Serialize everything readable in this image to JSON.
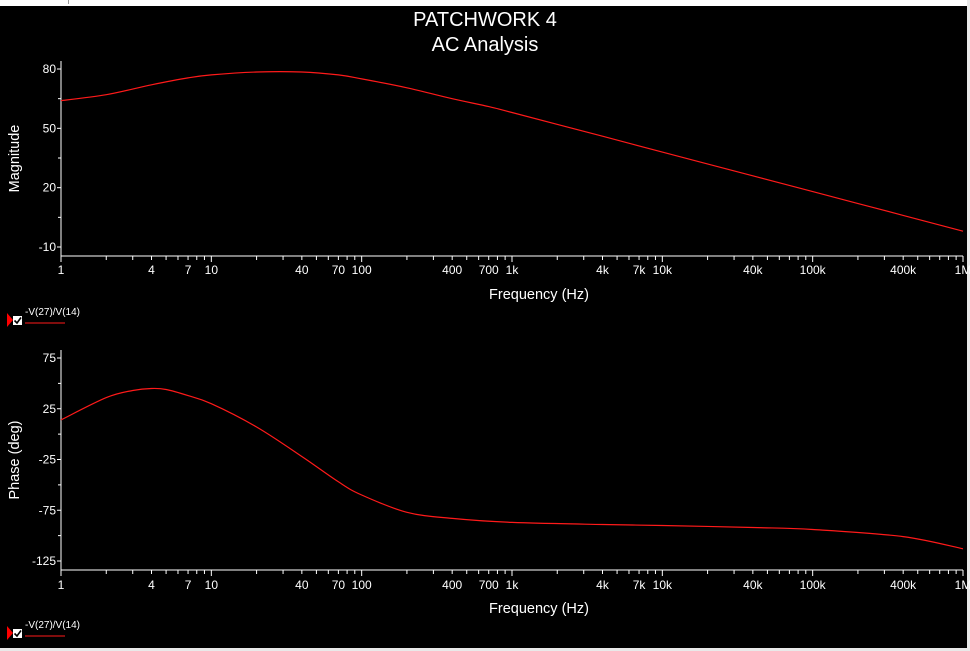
{
  "title": "PATCHWORK 4",
  "subtitle": "AC Analysis",
  "colors": {
    "background": "#000000",
    "trace": "#ff1a1a",
    "axis": "#ffffff",
    "marker": "#ff0000"
  },
  "chart_data": [
    {
      "type": "line",
      "title": "",
      "xlabel": "Frequency (Hz)",
      "ylabel": "Magnitude",
      "x_scale": "log",
      "xlim": [
        1,
        1000000
      ],
      "ylim": [
        -10,
        80
      ],
      "x_ticks": [
        1,
        4,
        7,
        10,
        40,
        70,
        100,
        400,
        700,
        1000,
        4000,
        7000,
        10000,
        40000,
        100000,
        400000,
        1000000
      ],
      "x_tick_labels": [
        "1",
        "4",
        "7",
        "10",
        "40",
        "70",
        "100",
        "400",
        "700",
        "1k",
        "4k",
        "7k",
        "10k",
        "40k",
        "100k",
        "400k",
        "1M"
      ],
      "y_ticks": [
        80,
        50,
        20,
        -10
      ],
      "y_tick_labels": [
        "80",
        "50",
        "20",
        "-10"
      ],
      "legend": {
        "label": "-V(27)/V(14)",
        "checked": true
      },
      "series": [
        {
          "name": "-V(27)/V(14)",
          "color": "#ff1a1a",
          "x": [
            1,
            2,
            4,
            7,
            10,
            20,
            40,
            70,
            100,
            200,
            400,
            700,
            1000,
            4000,
            10000,
            40000,
            100000,
            400000,
            1000000
          ],
          "y": [
            64,
            67,
            72,
            75.5,
            77,
            78.5,
            78.5,
            77,
            75,
            70.5,
            65,
            61,
            58,
            46,
            38,
            26,
            18,
            6,
            -2
          ]
        }
      ]
    },
    {
      "type": "line",
      "title": "",
      "xlabel": "Frequency (Hz)",
      "ylabel": "Phase (deg)",
      "x_scale": "log",
      "xlim": [
        1,
        1000000
      ],
      "ylim": [
        -125,
        75
      ],
      "x_ticks": [
        1,
        4,
        7,
        10,
        40,
        70,
        100,
        400,
        700,
        1000,
        4000,
        7000,
        10000,
        40000,
        100000,
        400000,
        1000000
      ],
      "x_tick_labels": [
        "1",
        "4",
        "7",
        "10",
        "40",
        "70",
        "100",
        "400",
        "700",
        "1k",
        "4k",
        "7k",
        "10k",
        "40k",
        "100k",
        "400k",
        "1M"
      ],
      "y_ticks": [
        75,
        25,
        -25,
        -75,
        -125
      ],
      "y_tick_labels": [
        "75",
        "25",
        "-25",
        "-75",
        "-125"
      ],
      "legend": {
        "label": "-V(27)/V(14)",
        "checked": true
      },
      "series": [
        {
          "name": "-V(27)/V(14)",
          "color": "#ff1a1a",
          "x": [
            1,
            2,
            3,
            4,
            5,
            7,
            10,
            20,
            40,
            70,
            100,
            200,
            400,
            1000,
            4000,
            10000,
            40000,
            100000,
            400000,
            1000000
          ],
          "y": [
            14,
            36,
            43,
            45,
            44,
            38,
            30,
            7,
            -22,
            -47,
            -60,
            -77,
            -83,
            -87,
            -89,
            -90,
            -92,
            -94,
            -101,
            -113
          ]
        }
      ]
    }
  ]
}
